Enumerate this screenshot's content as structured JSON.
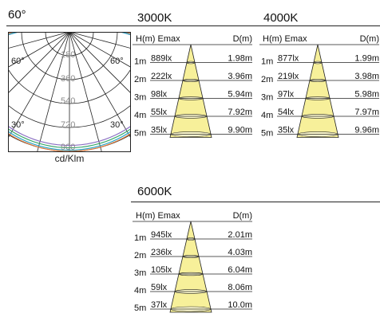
{
  "beam_angle": "60°",
  "polar": {
    "angle_labels": {
      "left_top": "60°",
      "right_top": "60°",
      "left_bottom": "30°",
      "right_bottom": "30°"
    },
    "radial_labels": [
      "180",
      "360",
      "540",
      "720",
      "900"
    ],
    "unit": "cd/Klm",
    "colors": {
      "grid": "#222222",
      "curve_green": "#3aa86b",
      "curve_cyan": "#2ea6c9",
      "curve_orange": "#e07a3c",
      "curve_purple": "#8a6fc2"
    }
  },
  "panels": [
    {
      "title": "3000K",
      "header_left": "H(m) Emax",
      "header_right": "D(m)",
      "rows": [
        {
          "h": "1m",
          "emax": "889lx",
          "d": "1.98m"
        },
        {
          "h": "2m",
          "emax": "222lx",
          "d": "3.96m"
        },
        {
          "h": "3m",
          "emax": "98lx",
          "d": "5.94m"
        },
        {
          "h": "4m",
          "emax": "55lx",
          "d": "7.92m"
        },
        {
          "h": "5m",
          "emax": "35lx",
          "d": "9.90m"
        }
      ]
    },
    {
      "title": "4000K",
      "header_left": "H(m) Emax",
      "header_right": "D(m)",
      "rows": [
        {
          "h": "1m",
          "emax": "877lx",
          "d": "1.99m"
        },
        {
          "h": "2m",
          "emax": "219lx",
          "d": "3.98m"
        },
        {
          "h": "3m",
          "emax": "97lx",
          "d": "5.98m"
        },
        {
          "h": "4m",
          "emax": "54lx",
          "d": "7.97m"
        },
        {
          "h": "5m",
          "emax": "35lx",
          "d": "9.96m"
        }
      ]
    },
    {
      "title": "6000K",
      "header_left": "H(m) Emax",
      "header_right": "D(m)",
      "rows": [
        {
          "h": "1m",
          "emax": "945lx",
          "d": "2.01m"
        },
        {
          "h": "2m",
          "emax": "236lx",
          "d": "4.03m"
        },
        {
          "h": "3m",
          "emax": "105lx",
          "d": "6.04m"
        },
        {
          "h": "4m",
          "emax": "59lx",
          "d": "8.06m"
        },
        {
          "h": "5m",
          "emax": "37lx",
          "d": "10.0m"
        }
      ]
    }
  ],
  "cone_colors": {
    "fill": "#f7f09a",
    "stroke": "#222222"
  }
}
